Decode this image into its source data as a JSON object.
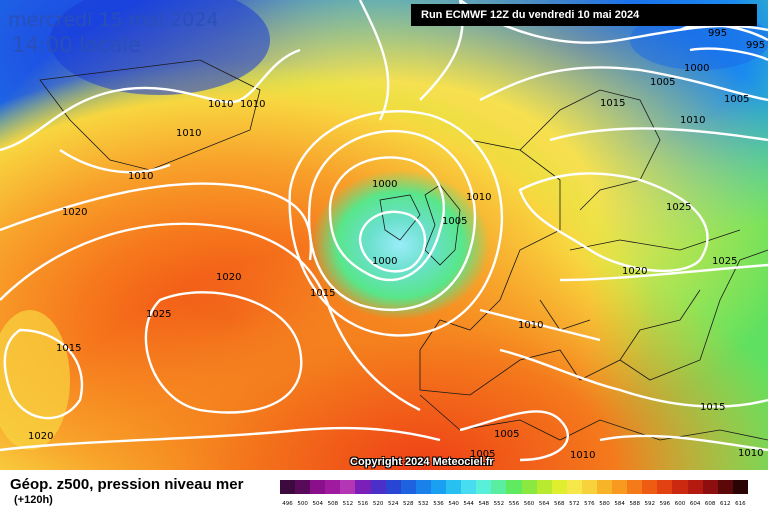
{
  "title": {
    "date": "mercredi 15 mai 2024",
    "time": "14:00 locale",
    "run": "Run ECMWF 12Z du vendredi 10 mai 2024"
  },
  "legend": {
    "label": "Géop. z500, pression niveau mer",
    "lead": "(+120h)",
    "scale_values": [
      "496",
      "500",
      "504",
      "508",
      "512",
      "516",
      "520",
      "524",
      "528",
      "532",
      "536",
      "540",
      "544",
      "548",
      "552",
      "556",
      "560",
      "564",
      "568",
      "572",
      "576",
      "580",
      "584",
      "588",
      "592",
      "596",
      "600",
      "604",
      "608",
      "612",
      "616"
    ],
    "scale_colors": [
      "#3d0a3d",
      "#5a0a5a",
      "#8a0f8a",
      "#a01aa0",
      "#b436b4",
      "#7a1fb8",
      "#4a2fc8",
      "#2845d4",
      "#1e62e0",
      "#1a80ea",
      "#1aa0f0",
      "#28c0f0",
      "#48dcf0",
      "#58f0d8",
      "#5aeea0",
      "#60ea60",
      "#8ae840",
      "#b8ea30",
      "#e0ee30",
      "#f6e84a",
      "#f8d23a",
      "#f8b428",
      "#f89a20",
      "#f47a1a",
      "#ee5c14",
      "#e24212",
      "#cc2a10",
      "#b41a10",
      "#8c0e0e",
      "#5c0808",
      "#2a0404"
    ]
  },
  "isobars": {
    "labels": [
      "995",
      "995",
      "1000",
      "1005",
      "1005",
      "1010",
      "1010",
      "1010",
      "1010",
      "1000",
      "1010",
      "1015",
      "1020",
      "1005",
      "1025",
      "1000",
      "1025",
      "1020",
      "1020",
      "1015",
      "1025",
      "1015",
      "1010",
      "1015",
      "1005",
      "1020",
      "1005",
      "1010",
      "1010",
      "1010"
    ]
  },
  "copyright": "Copyright 2024 Meteociel.fr"
}
